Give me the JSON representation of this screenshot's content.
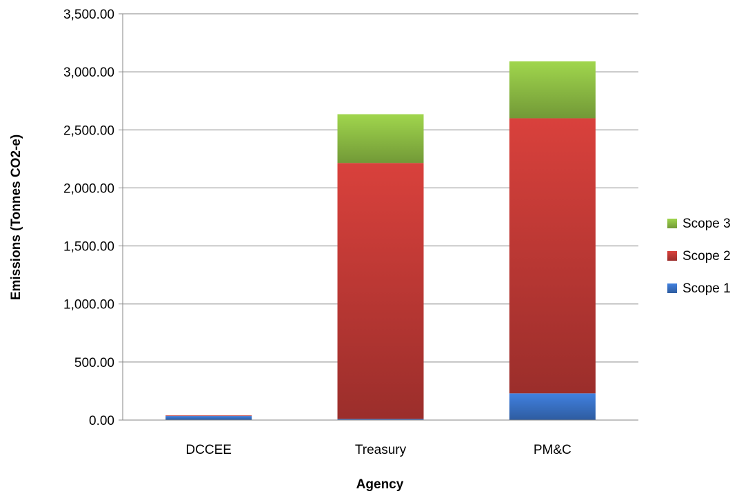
{
  "chart_data": {
    "type": "bar",
    "stacked": true,
    "categories": [
      "DCCEE",
      "Treasury",
      "PM&C"
    ],
    "series": [
      {
        "name": "Scope 1",
        "values": [
          35,
          10,
          230
        ],
        "color": "#3a73c8"
      },
      {
        "name": "Scope 2",
        "values": [
          5,
          2205,
          2370
        ],
        "color": "#c23a36"
      },
      {
        "name": "Scope 3",
        "values": [
          0,
          420,
          490
        ],
        "color": "#8fbf45"
      }
    ],
    "xlabel": "Agency",
    "ylabel": "Emissions (Tonnes CO2-e)",
    "ylim": [
      0,
      3500
    ],
    "yticks": [
      "0.00",
      "500.00",
      "1,000.00",
      "1,500.00",
      "2,000.00",
      "2,500.00",
      "3,000.00",
      "3,500.00"
    ],
    "grid": true,
    "legend_position": "right",
    "legend_order": [
      "Scope 3",
      "Scope 2",
      "Scope 1"
    ]
  }
}
